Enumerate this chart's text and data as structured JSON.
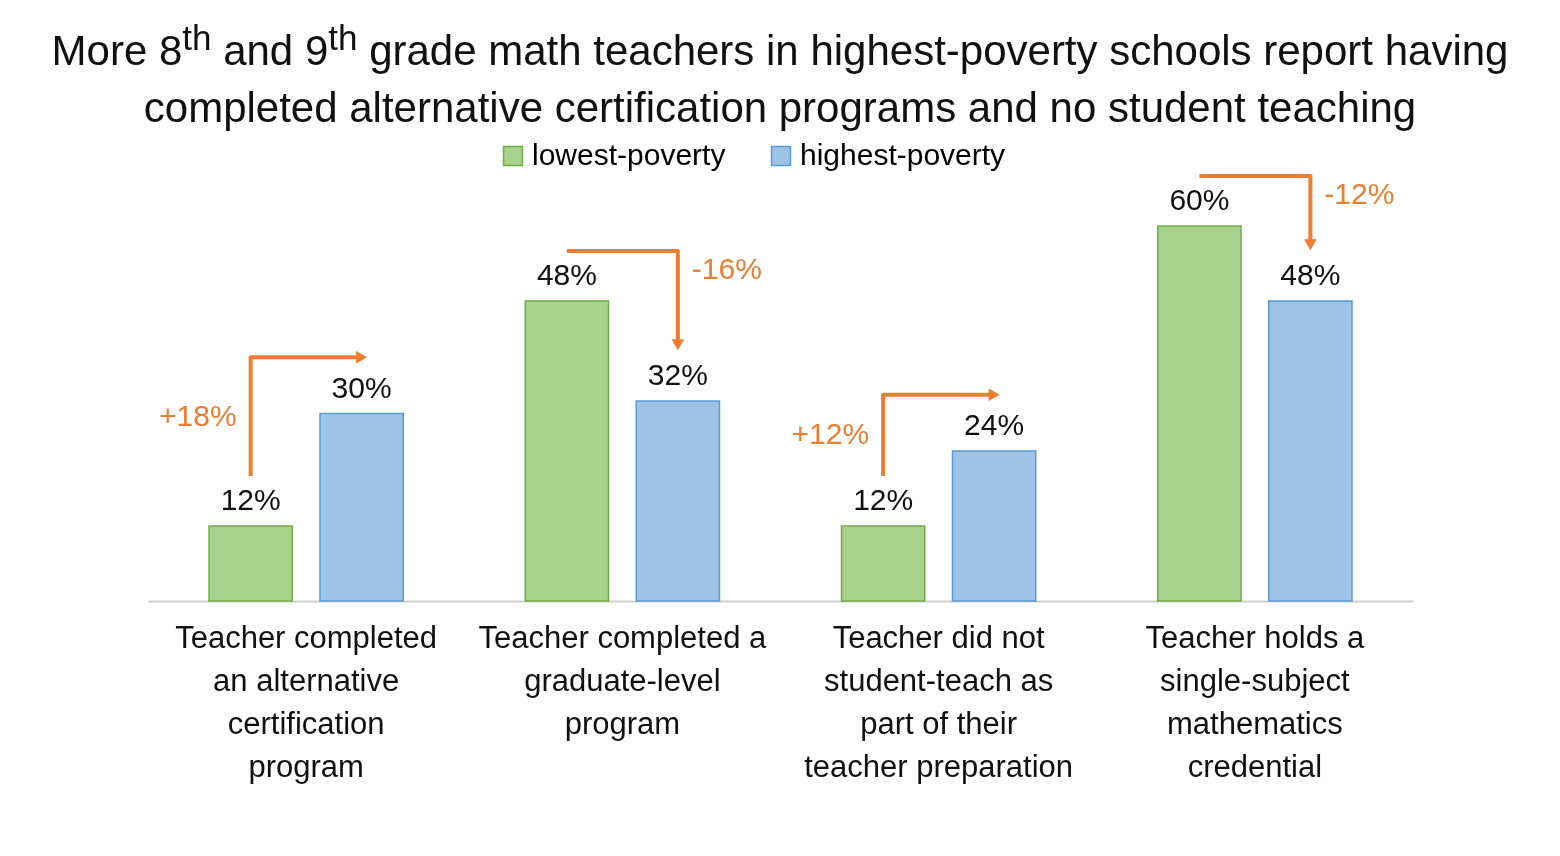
{
  "chart_data": {
    "type": "bar",
    "title": "More 8$^{th}$ and 9$^{th}$ grade math teachers in highest-poverty schools report having completed alternative certification programs and no student teaching",
    "categories": [
      "Teacher completed an alternative certification program",
      "Teacher completed a graduate-level program",
      "Teacher did not student-teach as part of their teacher preparation",
      "Teacher holds a single-subject mathematics credential"
    ],
    "series": [
      {
        "name": "lowest-poverty",
        "color": "#a9d18e",
        "values": [
          12,
          48,
          12,
          60
        ],
        "value_labels": [
          "12%",
          "48%",
          "12%",
          "60%"
        ]
      },
      {
        "name": "highest-poverty",
        "color": "#9dc3e6",
        "values": [
          30,
          32,
          24,
          48
        ],
        "value_labels": [
          "30%",
          "32%",
          "24%",
          "48%"
        ]
      }
    ],
    "legend": "top",
    "grid": false,
    "annotations": [
      "+18%",
      "-16%",
      "+12%",
      "-12%"
    ]
  }
}
